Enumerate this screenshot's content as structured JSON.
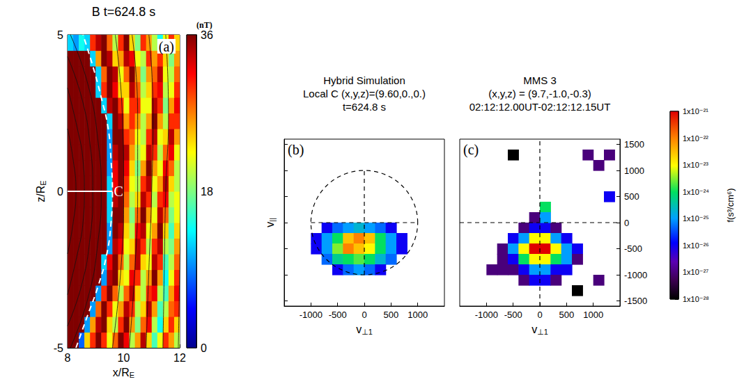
{
  "chart_data": [
    {
      "type": "heatmap",
      "panel": "(a)",
      "title": "B t=624.8 s",
      "x_label": {
        "text": "x/R",
        "sub": "E"
      },
      "y_label": {
        "text": "z/R",
        "sub": "E"
      },
      "xlim": [
        8,
        12
      ],
      "xticks": [
        8,
        10,
        12
      ],
      "ylim": [
        -5,
        5
      ],
      "yticks": [
        -5,
        0,
        5
      ],
      "x": [
        8.1,
        8.3,
        8.5,
        8.7,
        8.9,
        9.1,
        9.3,
        9.5,
        9.7,
        9.9,
        10.1,
        10.3,
        10.5,
        10.7,
        10.9,
        11.1,
        11.3,
        11.5,
        11.7,
        11.9
      ],
      "y": [
        -4.75,
        -4.25,
        -3.75,
        -3.25,
        -2.75,
        -2.25,
        -1.75,
        -1.25,
        -0.75,
        -0.25,
        0.25,
        0.75,
        1.25,
        1.75,
        2.25,
        2.75,
        3.25,
        3.75,
        4.25,
        4.75
      ],
      "cell_size": [
        0.2,
        0.5
      ],
      "values": [
        [
          40,
          40,
          8,
          24,
          30,
          36,
          30,
          22,
          28,
          36,
          32,
          20,
          26,
          34,
          24,
          16,
          22,
          30,
          26,
          20
        ],
        [
          40,
          40,
          40,
          10,
          26,
          34,
          36,
          24,
          20,
          30,
          36,
          26,
          18,
          28,
          32,
          20,
          14,
          24,
          30,
          24
        ],
        [
          40,
          40,
          40,
          40,
          10,
          28,
          36,
          30,
          22,
          26,
          34,
          30,
          20,
          24,
          34,
          26,
          16,
          20,
          28,
          30
        ],
        [
          40,
          40,
          40,
          40,
          40,
          10,
          30,
          36,
          28,
          20,
          28,
          34,
          24,
          20,
          30,
          32,
          20,
          16,
          26,
          32
        ],
        [
          40,
          40,
          40,
          40,
          40,
          40,
          10,
          34,
          36,
          24,
          22,
          32,
          30,
          20,
          26,
          36,
          26,
          14,
          22,
          30
        ],
        [
          40,
          40,
          40,
          40,
          40,
          40,
          12,
          32,
          36,
          28,
          20,
          28,
          34,
          24,
          22,
          34,
          30,
          16,
          20,
          28
        ],
        [
          40,
          40,
          40,
          40,
          40,
          40,
          40,
          10,
          34,
          32,
          22,
          24,
          34,
          30,
          20,
          30,
          34,
          20,
          18,
          26
        ],
        [
          40,
          40,
          40,
          40,
          40,
          40,
          40,
          10,
          36,
          34,
          24,
          20,
          32,
          34,
          22,
          26,
          36,
          24,
          16,
          24
        ],
        [
          40,
          40,
          40,
          40,
          40,
          40,
          40,
          12,
          36,
          36,
          26,
          18,
          28,
          36,
          26,
          22,
          34,
          28,
          18,
          22
        ],
        [
          40,
          40,
          40,
          40,
          40,
          40,
          40,
          12,
          34,
          36,
          28,
          20,
          24,
          34,
          30,
          20,
          30,
          32,
          20,
          22
        ],
        [
          40,
          40,
          40,
          40,
          40,
          40,
          40,
          12,
          32,
          36,
          30,
          22,
          20,
          30,
          34,
          22,
          26,
          34,
          24,
          20
        ],
        [
          40,
          40,
          40,
          40,
          40,
          40,
          40,
          10,
          32,
          36,
          32,
          24,
          18,
          26,
          36,
          26,
          22,
          32,
          28,
          20
        ],
        [
          40,
          40,
          40,
          40,
          40,
          40,
          40,
          10,
          34,
          36,
          34,
          26,
          20,
          22,
          34,
          30,
          20,
          28,
          32,
          22
        ],
        [
          40,
          40,
          40,
          40,
          40,
          40,
          40,
          10,
          36,
          36,
          30,
          28,
          22,
          20,
          30,
          34,
          22,
          24,
          34,
          26
        ],
        [
          40,
          40,
          40,
          40,
          40,
          40,
          40,
          12,
          36,
          34,
          26,
          30,
          26,
          20,
          26,
          36,
          26,
          20,
          30,
          30
        ],
        [
          40,
          40,
          40,
          40,
          40,
          40,
          12,
          34,
          36,
          30,
          22,
          30,
          30,
          22,
          22,
          34,
          30,
          18,
          26,
          32
        ],
        [
          40,
          40,
          40,
          40,
          40,
          12,
          30,
          36,
          32,
          24,
          24,
          34,
          28,
          20,
          24,
          30,
          32,
          20,
          22,
          30
        ],
        [
          40,
          40,
          40,
          40,
          40,
          12,
          28,
          36,
          34,
          22,
          28,
          36,
          26,
          18,
          26,
          28,
          34,
          22,
          20,
          28
        ],
        [
          40,
          40,
          40,
          40,
          12,
          26,
          36,
          34,
          24,
          26,
          34,
          32,
          22,
          20,
          30,
          26,
          30,
          24,
          18,
          26
        ],
        [
          12,
          10,
          14,
          12,
          30,
          34,
          36,
          28,
          20,
          30,
          36,
          24,
          18,
          30,
          26,
          20,
          14,
          22,
          30,
          24
        ]
      ],
      "clim": [
        0,
        36
      ],
      "colorbar": {
        "title": "(nT)",
        "ticks": [
          0,
          18,
          36
        ]
      },
      "field_lines": [
        [
          [
            8,
            -2
          ],
          [
            8.2,
            -1
          ],
          [
            8.3,
            0
          ],
          [
            8.2,
            1
          ],
          [
            8,
            2
          ]
        ],
        [
          [
            8,
            -3.3
          ],
          [
            8.35,
            -2
          ],
          [
            8.55,
            -1
          ],
          [
            8.6,
            0
          ],
          [
            8.55,
            1
          ],
          [
            8.35,
            2
          ],
          [
            8,
            3.3
          ]
        ],
        [
          [
            8,
            -4.3
          ],
          [
            8.5,
            -3
          ],
          [
            8.8,
            -1.5
          ],
          [
            8.9,
            0
          ],
          [
            8.8,
            1.5
          ],
          [
            8.5,
            3
          ],
          [
            8,
            4.3
          ]
        ],
        [
          [
            8,
            -5.2
          ],
          [
            8.7,
            -3.5
          ],
          [
            9.1,
            -1.5
          ],
          [
            9.2,
            0
          ],
          [
            9.1,
            1.5
          ],
          [
            8.7,
            3.5
          ],
          [
            8,
            5.2
          ]
        ],
        [
          [
            9.6,
            -5
          ],
          [
            9.9,
            -2.5
          ],
          [
            10.0,
            0
          ],
          [
            9.95,
            2.5
          ],
          [
            9.7,
            5
          ]
        ],
        [
          [
            10.2,
            -5
          ],
          [
            10.4,
            -2.5
          ],
          [
            10.5,
            0
          ],
          [
            10.5,
            2.5
          ],
          [
            10.3,
            5
          ]
        ],
        [
          [
            10.8,
            -5
          ],
          [
            10.9,
            -2.5
          ],
          [
            11.0,
            0
          ],
          [
            11.05,
            2.5
          ],
          [
            10.9,
            5
          ]
        ],
        [
          [
            11.4,
            -5
          ],
          [
            11.45,
            -2.5
          ],
          [
            11.5,
            0
          ],
          [
            11.6,
            2.5
          ],
          [
            11.5,
            5
          ]
        ],
        [
          [
            11.95,
            -5
          ],
          [
            12.0,
            -2.5
          ],
          [
            12.05,
            0
          ],
          [
            12.1,
            2.5
          ],
          [
            12.05,
            5
          ]
        ]
      ],
      "boundary": [
        [
          8.3,
          -5
        ],
        [
          8.7,
          -4
        ],
        [
          9.1,
          -3
        ],
        [
          9.4,
          -2
        ],
        [
          9.55,
          -1
        ],
        [
          9.6,
          0
        ],
        [
          9.55,
          1
        ],
        [
          9.45,
          2
        ],
        [
          9.2,
          3
        ],
        [
          8.9,
          4
        ],
        [
          8.55,
          5
        ]
      ],
      "marker_line": {
        "x": [
          8,
          9.6
        ],
        "z": 0,
        "label": "C"
      }
    },
    {
      "type": "heatmap",
      "panel": "(b)",
      "title": [
        "Hybrid Simulation",
        "Local C (x,y,z)=(9.60,0.,0.)",
        "t=624.8 s"
      ],
      "x_label": {
        "text": "v",
        "sub": "⊥1"
      },
      "y_label": {
        "text": "v",
        "sub": "||"
      },
      "xlim": [
        -1500,
        1500
      ],
      "xticks": [
        -1000,
        -500,
        0,
        500,
        1000
      ],
      "ylim": [
        -1600,
        1600
      ],
      "yticks": [
        -1500,
        -1000,
        -500,
        0,
        500,
        1000,
        1500
      ],
      "tick_labels": "x",
      "cell_size": 200,
      "cells": [
        [
          -700,
          -100,
          1e-26
        ],
        [
          -500,
          -100,
          5e-26
        ],
        [
          -300,
          -100,
          1e-25
        ],
        [
          -100,
          -100,
          2e-25
        ],
        [
          100,
          -100,
          1e-25
        ],
        [
          300,
          -100,
          5e-26
        ],
        [
          500,
          -100,
          1e-26
        ],
        [
          -900,
          -300,
          1e-26
        ],
        [
          -700,
          -300,
          1e-25
        ],
        [
          -500,
          -300,
          1e-24
        ],
        [
          -300,
          -300,
          3e-23
        ],
        [
          -100,
          -300,
          1e-22
        ],
        [
          100,
          -300,
          3e-23
        ],
        [
          300,
          -300,
          1e-24
        ],
        [
          500,
          -300,
          1e-25
        ],
        [
          700,
          -300,
          1e-26
        ],
        [
          -900,
          -500,
          1e-26
        ],
        [
          -700,
          -500,
          1e-25
        ],
        [
          -500,
          -500,
          3e-24
        ],
        [
          -300,
          -500,
          1e-22
        ],
        [
          -100,
          -500,
          3e-23
        ],
        [
          100,
          -500,
          1e-23
        ],
        [
          300,
          -500,
          1e-24
        ],
        [
          500,
          -500,
          1e-25
        ],
        [
          700,
          -500,
          1e-26
        ],
        [
          -700,
          -700,
          5e-26
        ],
        [
          -500,
          -700,
          5e-25
        ],
        [
          -300,
          -700,
          1e-24
        ],
        [
          -100,
          -700,
          2e-24
        ],
        [
          100,
          -700,
          1e-24
        ],
        [
          300,
          -700,
          2e-25
        ],
        [
          500,
          -700,
          5e-26
        ],
        [
          -500,
          -900,
          1e-26
        ],
        [
          -300,
          -900,
          5e-26
        ],
        [
          -100,
          -900,
          1e-25
        ],
        [
          100,
          -900,
          5e-26
        ],
        [
          300,
          -900,
          1e-26
        ]
      ],
      "clim": [
        1e-28,
        1e-21
      ],
      "reference_lines": {
        "x": 0,
        "y": 0
      },
      "circle_radius": 1000
    },
    {
      "type": "heatmap",
      "panel": "(c)",
      "title": [
        "MMS 3",
        "(x,y,z) = (9.7,-1.0,-0.3)",
        "02:12:12.00UT-02:12:12.15UT"
      ],
      "x_label": {
        "text": "v",
        "sub": "⊥1"
      },
      "xlim": [
        -1500,
        1500
      ],
      "xticks": [
        -1000,
        -500,
        0,
        500,
        1000
      ],
      "ylim": [
        -1600,
        1600
      ],
      "yticks": [
        -1500,
        -1000,
        -500,
        0,
        500,
        1000,
        1500
      ],
      "cell_size": 200,
      "cells": [
        [
          -300,
          -100,
          1e-27
        ],
        [
          -100,
          -100,
          1e-26
        ],
        [
          100,
          -100,
          1e-26
        ],
        [
          300,
          -100,
          1e-27
        ],
        [
          -500,
          -300,
          1e-26
        ],
        [
          -300,
          -300,
          1e-25
        ],
        [
          -100,
          -300,
          1e-23
        ],
        [
          100,
          -300,
          1e-23
        ],
        [
          300,
          -300,
          1e-25
        ],
        [
          500,
          -300,
          1e-26
        ],
        [
          -700,
          -500,
          1e-27
        ],
        [
          -500,
          -500,
          1e-25
        ],
        [
          -300,
          -500,
          1e-23
        ],
        [
          -100,
          -500,
          1e-21
        ],
        [
          100,
          -500,
          1e-21
        ],
        [
          300,
          -500,
          1e-23
        ],
        [
          500,
          -500,
          1e-25
        ],
        [
          700,
          -500,
          1e-26
        ],
        [
          -700,
          -700,
          1e-27
        ],
        [
          -500,
          -700,
          1e-26
        ],
        [
          -300,
          -700,
          1e-24
        ],
        [
          -100,
          -700,
          1e-23
        ],
        [
          100,
          -700,
          1e-23
        ],
        [
          300,
          -700,
          1e-24
        ],
        [
          500,
          -700,
          1e-25
        ],
        [
          700,
          -700,
          1e-27
        ],
        [
          -700,
          -900,
          1e-27
        ],
        [
          -500,
          -900,
          1e-27
        ],
        [
          -300,
          -900,
          1e-26
        ],
        [
          -100,
          -900,
          1e-25
        ],
        [
          100,
          -900,
          1e-25
        ],
        [
          300,
          -900,
          1e-26
        ],
        [
          500,
          -900,
          1e-26
        ],
        [
          -300,
          -1100,
          1e-27
        ],
        [
          -100,
          -1100,
          1e-26
        ],
        [
          100,
          -1100,
          1e-26
        ],
        [
          300,
          -1100,
          1e-27
        ],
        [
          100,
          300,
          1e-24
        ],
        [
          -100,
          100,
          1e-27
        ],
        [
          100,
          100,
          1e-25
        ],
        [
          -500,
          1300,
          1e-28
        ],
        [
          900,
          1300,
          1e-27
        ],
        [
          1100,
          1100,
          1e-27
        ],
        [
          1300,
          500,
          1e-26
        ],
        [
          1300,
          1300,
          1e-27
        ],
        [
          -900,
          -900,
          1e-27
        ],
        [
          1100,
          -1100,
          1e-27
        ],
        [
          700,
          -1300,
          1e-28
        ]
      ],
      "clim": [
        1e-28,
        1e-21
      ],
      "reference_lines": {
        "x": 0,
        "y": 0
      },
      "colorbar": {
        "title": "f(s³/cm⁶)",
        "log": true,
        "ticks": [
          {
            "value": 1e-21,
            "label": "1x10⁻²¹"
          },
          {
            "value": 1e-22,
            "label": "1x10⁻²²"
          },
          {
            "value": 1e-23,
            "label": "1x10⁻²³"
          },
          {
            "value": 1e-24,
            "label": "1x10⁻²⁴"
          },
          {
            "value": 1e-25,
            "label": "1x10⁻²⁵"
          },
          {
            "value": 1e-26,
            "label": "1x10⁻²⁶"
          },
          {
            "value": 1e-27,
            "label": "1x10⁻²⁷"
          },
          {
            "value": 1e-28,
            "label": "1x10⁻²⁸"
          }
        ]
      }
    }
  ]
}
